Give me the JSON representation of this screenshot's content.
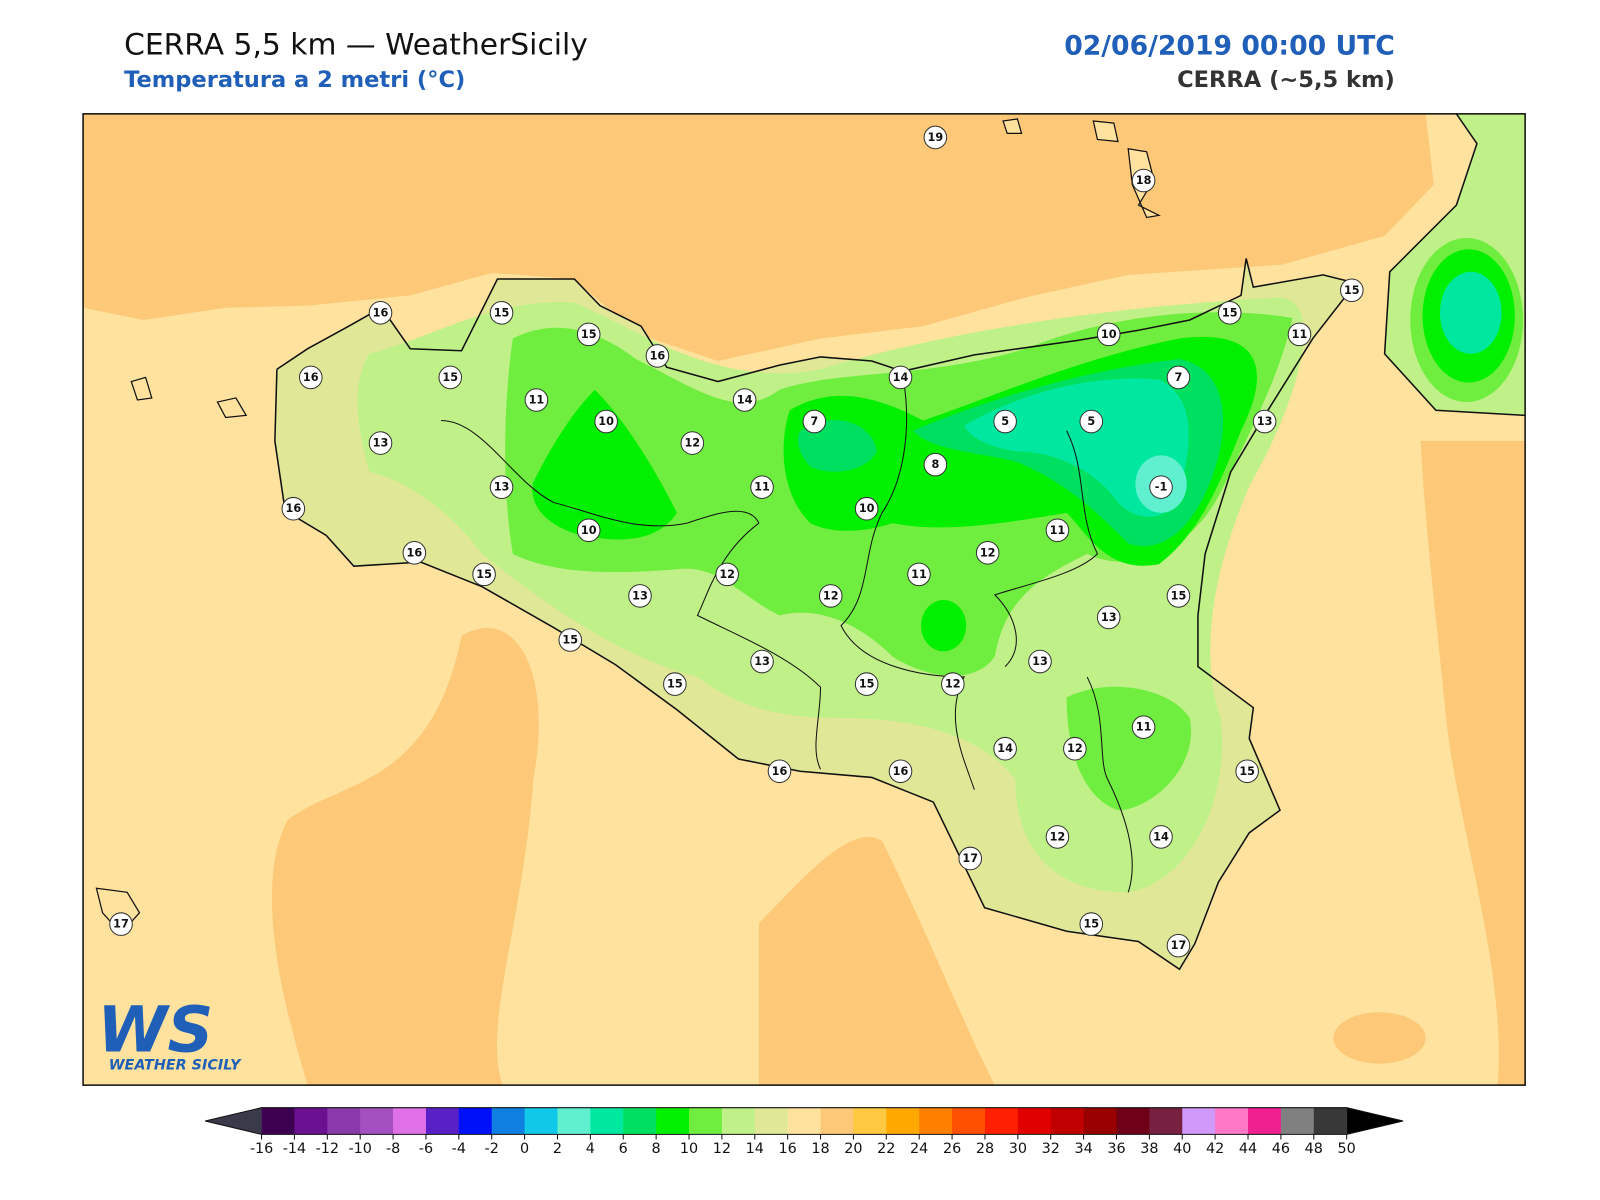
{
  "header": {
    "title": "CERRA 5,5 km — WeatherSicily",
    "subtitle": "Temperatura a 2 metri (°C)",
    "datetime": "02/06/2019 00:00 UTC",
    "model": "CERRA (~5,5 km)"
  },
  "logo": {
    "mark": "WS",
    "name": "WEATHER SICILY"
  },
  "stations": [
    19,
    18,
    16,
    15,
    15,
    16,
    16,
    15,
    11,
    10,
    14,
    12,
    13,
    7,
    14,
    10,
    15,
    15,
    11,
    7,
    5,
    5,
    13,
    8,
    -1,
    13,
    11,
    10,
    16,
    10,
    11,
    16,
    12,
    15,
    12,
    11,
    13,
    12,
    15,
    13,
    15,
    13,
    13,
    15,
    15,
    12,
    11,
    14,
    12,
    16,
    16,
    15,
    12,
    14,
    17,
    17,
    15,
    17
  ],
  "colorbar": {
    "ticks": [
      -16,
      -14,
      -12,
      -10,
      -8,
      -6,
      -4,
      -2,
      0,
      2,
      4,
      6,
      8,
      10,
      12,
      14,
      16,
      18,
      20,
      22,
      24,
      26,
      28,
      30,
      32,
      34,
      36,
      38,
      40,
      42,
      44,
      46,
      48,
      50
    ],
    "colors": [
      "#3d0050",
      "#6a1090",
      "#8a3aaa",
      "#a550c0",
      "#e070e8",
      "#5a20c8",
      "#0010f8",
      "#1080e0",
      "#10c8e8",
      "#60f0d0",
      "#00e8a0",
      "#00e060",
      "#00f000",
      "#70ee40",
      "#c0f088",
      "#e0e898",
      "#fee29e",
      "#fdc877",
      "#fec840",
      "#fea800",
      "#fe8000",
      "#fe5000",
      "#fe2000",
      "#e00000",
      "#c00000",
      "#980000",
      "#700018",
      "#782040",
      "#d098f8",
      "#ff78c8",
      "#f02090",
      "#808080",
      "#383838"
    ],
    "under_color": "#3a3a4a",
    "over_color": "#000000"
  }
}
